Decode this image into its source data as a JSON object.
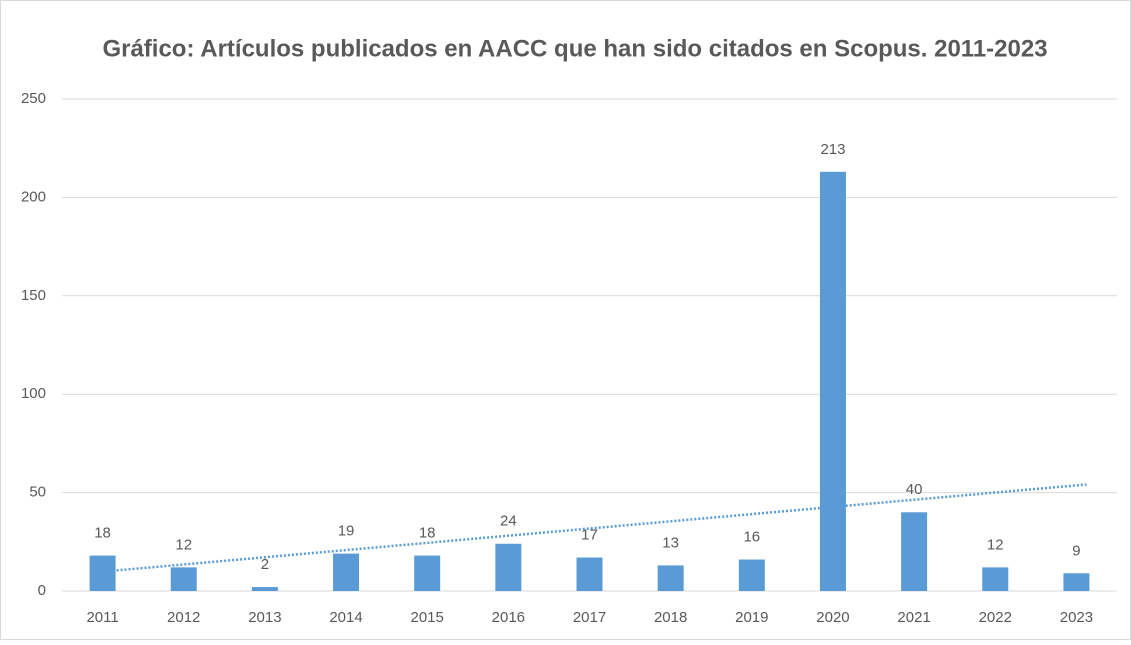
{
  "chart_data": {
    "type": "bar",
    "title": "Gráfico: Artículos publicados en AACC que han sido citados en Scopus. 2011-2023",
    "categories": [
      "2011",
      "2012",
      "2013",
      "2014",
      "2015",
      "2016",
      "2017",
      "2018",
      "2019",
      "2020",
      "2021",
      "2022",
      "2023"
    ],
    "values": [
      18,
      12,
      2,
      19,
      18,
      24,
      17,
      13,
      16,
      213,
      40,
      12,
      9
    ],
    "color": "#5b9bd5",
    "ylim": [
      0,
      250
    ],
    "yticks": [
      0,
      50,
      100,
      150,
      200,
      250
    ],
    "grid": true,
    "data_labels": true,
    "trendline": "linear"
  }
}
